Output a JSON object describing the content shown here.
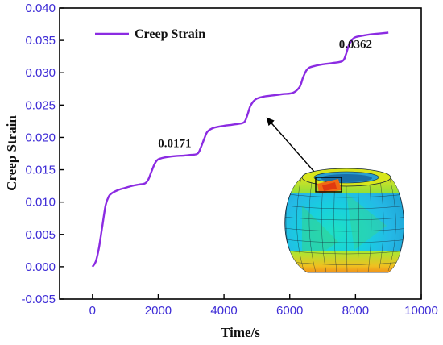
{
  "chart_data": {
    "type": "line",
    "title": "",
    "xlabel": "Time/s",
    "ylabel": "Creep Strain",
    "xlim": [
      -1000,
      10000
    ],
    "ylim": [
      -0.005,
      0.04
    ],
    "xticks": [
      "0",
      "2000",
      "4000",
      "6000",
      "8000",
      "10000"
    ],
    "yticks": [
      "-0.005",
      "0.000",
      "0.005",
      "0.010",
      "0.015",
      "0.020",
      "0.025",
      "0.030",
      "0.035",
      "0.040"
    ],
    "grid": false,
    "legend": "top-left",
    "series": [
      {
        "name": "Creep Strain",
        "color": "#8b2be2",
        "x": [
          0,
          100,
          200,
          300,
          400,
          500,
          600,
          800,
          1000,
          1200,
          1400,
          1600,
          1700,
          1800,
          1900,
          2000,
          2200,
          2500,
          2800,
          3000,
          3200,
          3300,
          3400,
          3500,
          3700,
          4000,
          4300,
          4600,
          4700,
          4800,
          4900,
          5000,
          5200,
          5500,
          5800,
          6100,
          6300,
          6400,
          6500,
          6600,
          6800,
          7000,
          7300,
          7600,
          7700,
          7800,
          7900,
          8000,
          8300,
          8600,
          9000
        ],
        "y": [
          0.0,
          0.0008,
          0.003,
          0.0063,
          0.0095,
          0.0109,
          0.0114,
          0.0119,
          0.0122,
          0.0125,
          0.0127,
          0.0129,
          0.0135,
          0.0148,
          0.016,
          0.0166,
          0.0169,
          0.0171,
          0.0172,
          0.0173,
          0.0175,
          0.0185,
          0.0198,
          0.0209,
          0.0215,
          0.0218,
          0.022,
          0.0223,
          0.0233,
          0.0248,
          0.0256,
          0.026,
          0.0263,
          0.0265,
          0.0267,
          0.0269,
          0.0278,
          0.0292,
          0.0303,
          0.0308,
          0.0311,
          0.0313,
          0.0315,
          0.0318,
          0.0327,
          0.0343,
          0.0351,
          0.0355,
          0.0358,
          0.036,
          0.0362
        ]
      }
    ],
    "annotations": [
      {
        "text": "0.0171",
        "x": 2500,
        "y": 0.0185
      },
      {
        "text": "0.0362",
        "x": 8000,
        "y": 0.0338
      }
    ]
  },
  "colors": {
    "line": "#8b2be2",
    "tick_labels": "#3d2bd6",
    "axis": "#000000"
  },
  "inset": {
    "icon": "deformed-cylinder-fem-mesh-contour"
  }
}
